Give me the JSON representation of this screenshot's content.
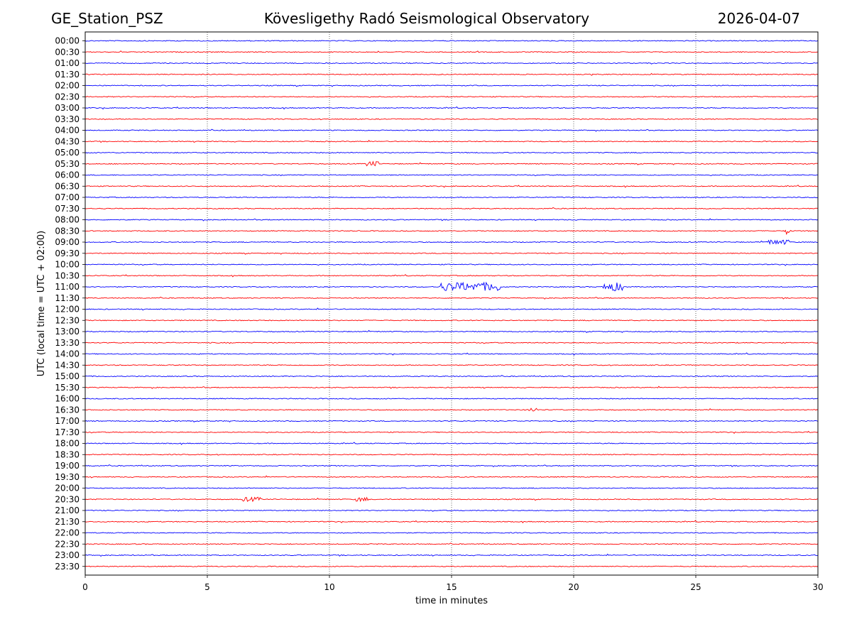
{
  "header": {
    "station": "GE_Station_PSZ",
    "observatory": "Kövesligethy Radó Seismological Observatory",
    "date": "2026-04-07"
  },
  "chart_data": {
    "type": "line",
    "title": "Kövesligethy Radó Seismological Observatory",
    "xlabel": "time in minutes",
    "ylabel": "UTC (local time = UTC + 02:00)",
    "xlim": [
      0,
      30
    ],
    "x_ticks": [
      0,
      5,
      10,
      15,
      20,
      25,
      30
    ],
    "grid": "vertical dotted lines at 5-minute ticks",
    "row_colors": [
      "#0000ff",
      "#ff0000"
    ],
    "rows": [
      "00:00",
      "00:30",
      "01:00",
      "01:30",
      "02:00",
      "02:30",
      "03:00",
      "03:30",
      "04:00",
      "04:30",
      "05:00",
      "05:30",
      "06:00",
      "06:30",
      "07:00",
      "07:30",
      "08:00",
      "08:30",
      "09:00",
      "09:30",
      "10:00",
      "10:30",
      "11:00",
      "11:30",
      "12:00",
      "12:30",
      "13:00",
      "13:30",
      "14:00",
      "14:30",
      "15:00",
      "15:30",
      "16:00",
      "16:30",
      "17:00",
      "17:30",
      "18:00",
      "18:30",
      "19:00",
      "19:30",
      "20:00",
      "20:30",
      "21:00",
      "21:30",
      "22:00",
      "22:30",
      "23:00",
      "23:30"
    ],
    "events": [
      {
        "row": "05:30",
        "start_min": 11.5,
        "end_min": 12.0,
        "strength": 0.5
      },
      {
        "row": "08:30",
        "start_min": 28.6,
        "end_min": 28.9,
        "strength": 0.8
      },
      {
        "row": "09:00",
        "start_min": 27.9,
        "end_min": 28.8,
        "strength": 0.5
      },
      {
        "row": "11:00",
        "start_min": 14.5,
        "end_min": 17.0,
        "strength": 1.0
      },
      {
        "row": "11:00",
        "start_min": 21.2,
        "end_min": 22.0,
        "strength": 1.0
      },
      {
        "row": "16:30",
        "start_min": 18.1,
        "end_min": 18.5,
        "strength": 0.4
      },
      {
        "row": "20:30",
        "start_min": 6.4,
        "end_min": 7.2,
        "strength": 0.4
      },
      {
        "row": "20:30",
        "start_min": 11.1,
        "end_min": 11.6,
        "strength": 0.4
      }
    ]
  }
}
